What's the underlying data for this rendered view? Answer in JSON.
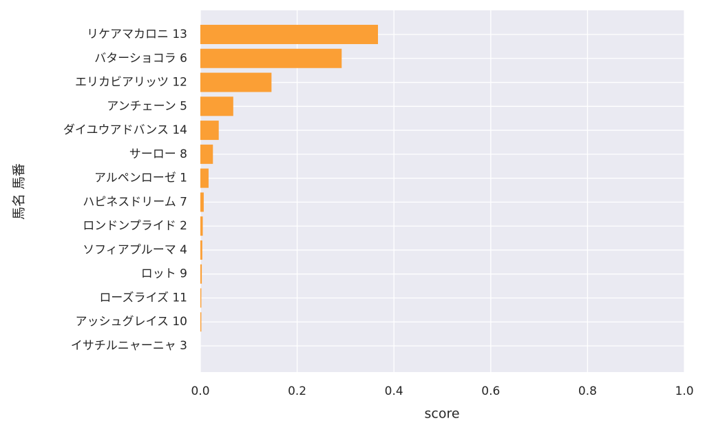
{
  "chart_data": {
    "type": "barh",
    "xlabel": "score",
    "ylabel": "馬名 馬番",
    "categories": [
      "リケアマカロニ 13",
      "バターショコラ 6",
      "エリカビアリッツ 12",
      "アンチェーン 5",
      "ダイユウアドバンス 14",
      "サーロー 8",
      "アルペンローゼ 1",
      "ハピネスドリーム 7",
      "ロンドンプライド 2",
      "ソフィアプルーマ 4",
      "ロット 9",
      "ローズライズ 11",
      "アッシュグレイス 10",
      "イサチルニャーニャ 3"
    ],
    "values": [
      0.367,
      0.292,
      0.147,
      0.068,
      0.038,
      0.026,
      0.017,
      0.007,
      0.005,
      0.004,
      0.003,
      0.002,
      0.002,
      0.0
    ],
    "color": "#fb9f35",
    "xlim": [
      0,
      1
    ],
    "xticks": [
      {
        "value": 0,
        "label": "0.0"
      },
      0.2,
      0.4,
      0.6,
      0.8,
      {
        "value": 1,
        "label": "1.0"
      }
    ],
    "grid": true
  }
}
